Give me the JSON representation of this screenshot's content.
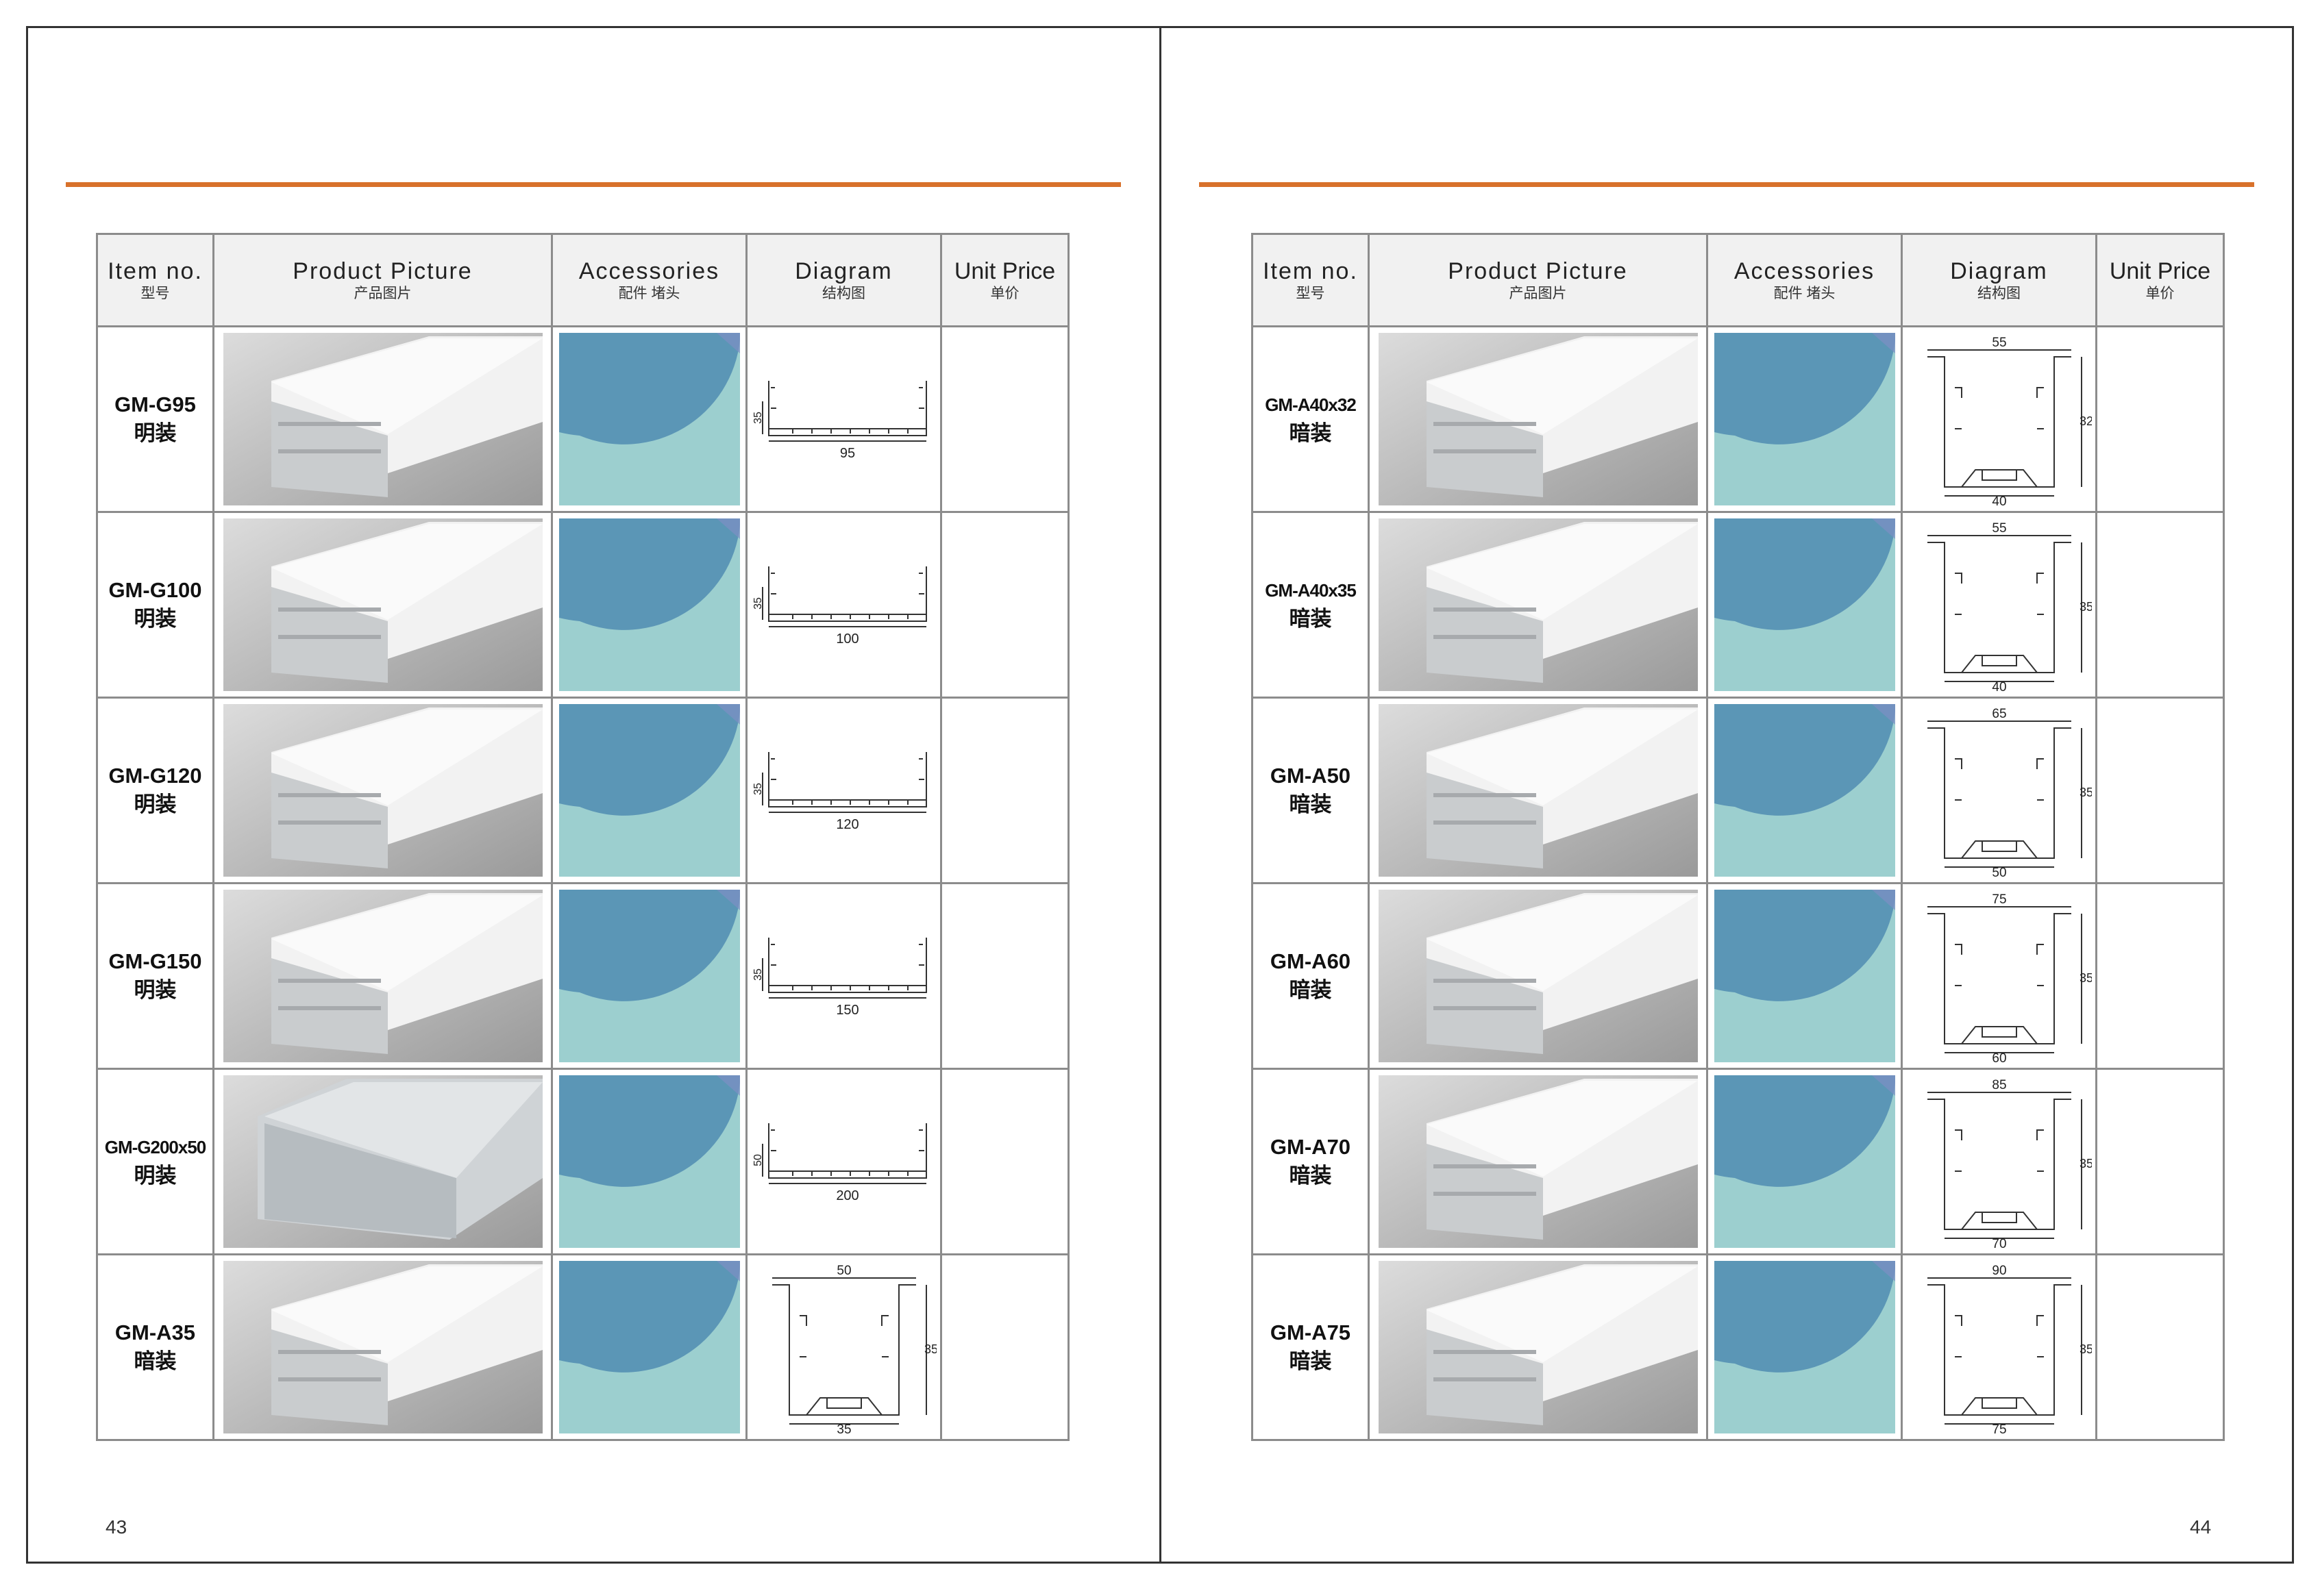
{
  "left_page": {
    "header": {
      "item_no": "Item no.",
      "item_no_zh": "型号",
      "picture": "Product Picture",
      "picture_zh": "产品图片",
      "accessories": "Accessories",
      "accessories_zh": "配件 堵头",
      "diagram": "Diagram",
      "diagram_zh": "结构图",
      "price": "Unit Price",
      "price_zh": "单价"
    },
    "rows": [
      {
        "code": "GM-G95",
        "kind": "明装",
        "dims": {
          "width": "95",
          "height": "35"
        }
      },
      {
        "code": "GM-G100",
        "kind": "明装",
        "dims": {
          "width": "100",
          "height": "35"
        }
      },
      {
        "code": "GM-G120",
        "kind": "明装",
        "dims": {
          "width": "120",
          "height": "35"
        }
      },
      {
        "code": "GM-G150",
        "kind": "明装",
        "dims": {
          "width": "150",
          "height": "35"
        }
      },
      {
        "code": "GM-G200x50",
        "kind": "明装",
        "dims": {
          "width": "200",
          "height": "50"
        }
      },
      {
        "code": "GM-A35",
        "kind": "暗装",
        "dims": {
          "top": "50",
          "height": "35",
          "bottom": "35"
        }
      }
    ],
    "page_number": "43"
  },
  "right_page": {
    "header": {
      "item_no": "Item no.",
      "item_no_zh": "型号",
      "picture": "Product Picture",
      "picture_zh": "产品图片",
      "accessories": "Accessories",
      "accessories_zh": "配件 堵头",
      "diagram": "Diagram",
      "diagram_zh": "结构图",
      "price": "Unit Price",
      "price_zh": "单价"
    },
    "rows": [
      {
        "code": "GM-A40x32",
        "kind": "暗装",
        "dims": {
          "top": "55",
          "height": "32",
          "bottom": "40"
        }
      },
      {
        "code": "GM-A40x35",
        "kind": "暗装",
        "dims": {
          "top": "55",
          "height": "35",
          "bottom": "40"
        }
      },
      {
        "code": "GM-A50",
        "kind": "暗装",
        "dims": {
          "top": "65",
          "height": "35",
          "bottom": "50"
        }
      },
      {
        "code": "GM-A60",
        "kind": "暗装",
        "dims": {
          "top": "75",
          "height": "35",
          "bottom": "60"
        }
      },
      {
        "code": "GM-A70",
        "kind": "暗装",
        "dims": {
          "top": "85",
          "height": "35",
          "bottom": "70"
        }
      },
      {
        "code": "GM-A75",
        "kind": "暗装",
        "dims": {
          "top": "90",
          "height": "35",
          "bottom": "75"
        }
      }
    ],
    "page_number": "44"
  },
  "colors": {
    "accent_line": "#d8712b",
    "circle_blue": "#5b96b6",
    "teal": "#9ccfcf",
    "border": "#8c8c8c"
  }
}
